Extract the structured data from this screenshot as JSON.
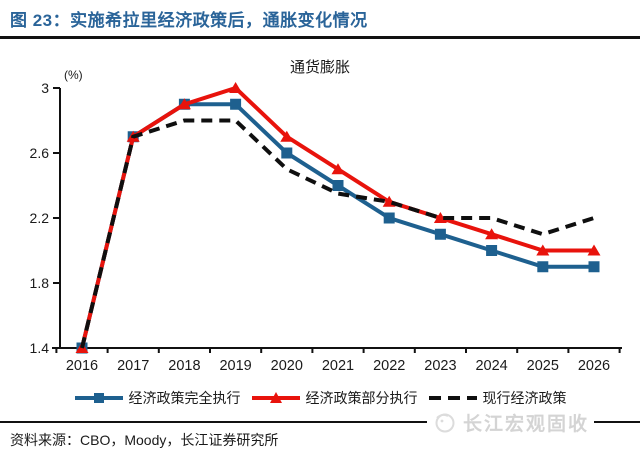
{
  "header": {
    "figure_title": "图 23：实施希拉里经济政策后，通胀变化情况"
  },
  "chart_data": {
    "type": "line",
    "title": "通货膨胀",
    "unit_label": "(%)",
    "categories": [
      "2016",
      "2017",
      "2018",
      "2019",
      "2020",
      "2021",
      "2022",
      "2023",
      "2024",
      "2025",
      "2026"
    ],
    "series": [
      {
        "name": "经济政策完全执行",
        "color": "#1e608f",
        "marker": "square",
        "line_style": "solid",
        "values": [
          1.4,
          2.7,
          2.9,
          2.9,
          2.6,
          2.4,
          2.2,
          2.1,
          2.0,
          1.9,
          1.9
        ]
      },
      {
        "name": "经济政策部分执行",
        "color": "#e8130c",
        "marker": "triangle",
        "line_style": "solid",
        "values": [
          1.4,
          2.7,
          2.9,
          3.0,
          2.7,
          2.5,
          2.3,
          2.2,
          2.1,
          2.0,
          2.0
        ]
      },
      {
        "name": "现行经济政策",
        "color": "#0f0f0f",
        "marker": "none",
        "line_style": "dashed",
        "values": [
          1.4,
          2.7,
          2.8,
          2.8,
          2.5,
          2.35,
          2.3,
          2.2,
          2.2,
          2.1,
          2.2
        ]
      }
    ],
    "ylim": [
      1.4,
      3.0
    ],
    "yticks": [
      "3",
      "2.6",
      "2.2",
      "1.8",
      "1.4"
    ],
    "ytick_values": [
      3.0,
      2.6,
      2.2,
      1.8,
      1.4
    ],
    "grid": false,
    "legend_position": "bottom"
  },
  "footer": {
    "source": "资料来源：CBO，Moody，长江证券研究所",
    "watermark": "长江宏观固收"
  }
}
